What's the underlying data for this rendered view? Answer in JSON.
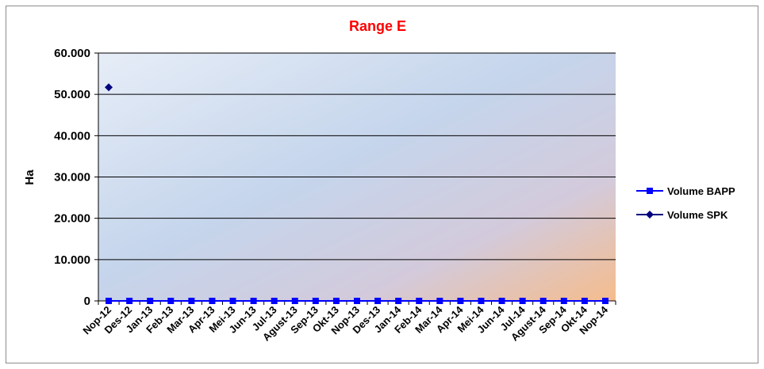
{
  "chart_data": {
    "type": "line",
    "title": "Range E",
    "xlabel": "",
    "ylabel": "Ha",
    "ylim": [
      0,
      60000
    ],
    "yticks": [
      "0",
      "10.000",
      "20.000",
      "30.000",
      "40.000",
      "50.000",
      "60.000"
    ],
    "ytick_values": [
      0,
      10000,
      20000,
      30000,
      40000,
      50000,
      60000
    ],
    "categories": [
      "Nop-12",
      "Des-12",
      "Jan-13",
      "Feb-13",
      "Mar-13",
      "Apr-13",
      "Mei-13",
      "Jun-13",
      "Jul-13",
      "Agust-13",
      "Sep-13",
      "Okt-13",
      "Nop-13",
      "Des-13",
      "Jan-14",
      "Feb-14",
      "Mar-14",
      "Apr-14",
      "Mei-14",
      "Jun-14",
      "Jul-14",
      "Agust-14",
      "Sep-14",
      "Okt-14",
      "Nop-14"
    ],
    "series": [
      {
        "name": "Volume BAPP",
        "color": "#0000ff",
        "marker": "square",
        "values": [
          0,
          0,
          0,
          0,
          0,
          0,
          0,
          0,
          0,
          0,
          0,
          0,
          0,
          0,
          0,
          0,
          0,
          0,
          0,
          0,
          0,
          0,
          0,
          0,
          0
        ]
      },
      {
        "name": "Volume SPK",
        "color": "#000080",
        "marker": "diamond",
        "values": [
          51700,
          null,
          null,
          null,
          null,
          null,
          null,
          null,
          null,
          null,
          null,
          null,
          null,
          null,
          null,
          null,
          null,
          null,
          null,
          null,
          null,
          null,
          null,
          null,
          null
        ]
      }
    ],
    "grid": true,
    "legend_position": "right"
  }
}
